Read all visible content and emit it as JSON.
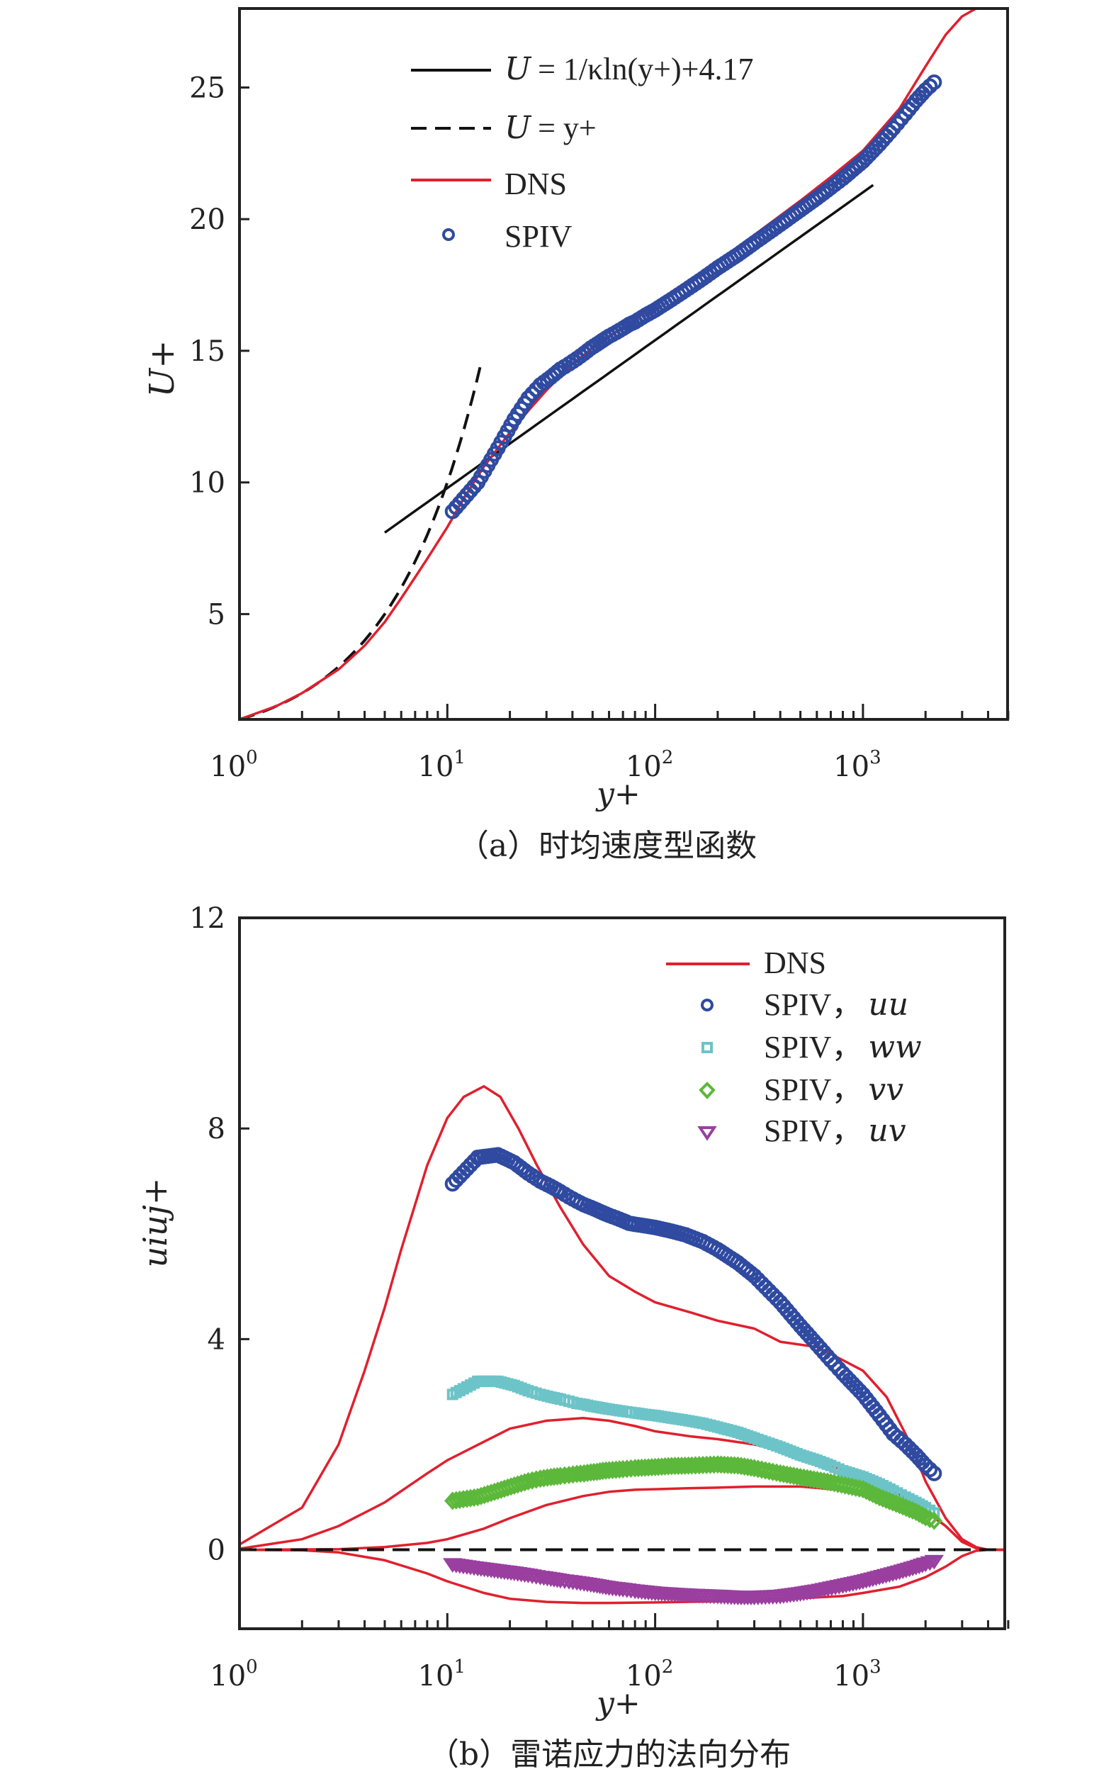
{
  "chart_data": [
    {
      "type": "line",
      "panel": "a",
      "caption": "（a）时均速度型函数",
      "xlabel": "y+",
      "ylabel": "U+",
      "xscale": "log",
      "xlim": [
        1,
        5000
      ],
      "ylim": [
        1,
        28
      ],
      "xticks": [
        {
          "v": 1,
          "base": "10",
          "exp": "0"
        },
        {
          "v": 10,
          "base": "10",
          "exp": "1"
        },
        {
          "v": 100,
          "base": "10",
          "exp": "2"
        },
        {
          "v": 1000,
          "base": "10",
          "exp": "3"
        }
      ],
      "yticks": [
        5,
        10,
        15,
        20,
        25
      ],
      "legend_position": "top-left",
      "legend": [
        {
          "key": "log",
          "label": "= 1/κln(y+)+4.17",
          "lhs": "U",
          "style": "solid-black"
        },
        {
          "key": "lin",
          "label": "= y+",
          "lhs": "U",
          "style": "dashed-black"
        },
        {
          "key": "dns",
          "label": "DNS",
          "style": "solid-red"
        },
        {
          "key": "spiv",
          "label": "SPIV",
          "style": "circle-blue"
        }
      ],
      "series": [
        {
          "name": "U+ = 1/κln(y+)+4.17",
          "key": "log",
          "kappa": 0.41,
          "B": 4.17,
          "x_range": [
            5,
            1250
          ]
        },
        {
          "name": "U+ = y+",
          "key": "lin",
          "x_range": [
            1,
            15
          ]
        },
        {
          "name": "DNS",
          "key": "dns",
          "x": [
            1,
            1.5,
            2,
            3,
            4,
            5,
            6,
            7,
            8,
            10,
            12,
            15,
            20,
            25,
            30,
            40,
            50,
            70,
            100,
            150,
            200,
            300,
            500,
            700,
            1000,
            1500,
            2000,
            2500,
            3000,
            3500,
            4000,
            5000
          ],
          "y": [
            1,
            1.5,
            2,
            2.9,
            3.8,
            4.7,
            5.6,
            6.4,
            7.1,
            8.3,
            9.4,
            10.6,
            11.9,
            12.8,
            13.5,
            14.5,
            15.1,
            15.9,
            16.7,
            17.7,
            18.4,
            19.4,
            20.7,
            21.6,
            22.6,
            24.2,
            25.8,
            27.0,
            27.7,
            28.0,
            28.0,
            28.0
          ]
        },
        {
          "name": "SPIV",
          "key": "spiv",
          "x": [
            10.6,
            14,
            17.5,
            21,
            24.5,
            28,
            31.5,
            35,
            38.5,
            42,
            45.5,
            49,
            52.5,
            56,
            60,
            65,
            70,
            75,
            80,
            90,
            100,
            120,
            140,
            170,
            200,
            250,
            300,
            400,
            500,
            600,
            700,
            800,
            1000,
            1200,
            1400,
            1600,
            1800,
            2000,
            2200
          ],
          "y": [
            8.9,
            10.0,
            11.3,
            12.4,
            13.2,
            13.7,
            14.0,
            14.3,
            14.5,
            14.7,
            14.9,
            15.1,
            15.25,
            15.4,
            15.55,
            15.7,
            15.85,
            16.0,
            16.1,
            16.35,
            16.55,
            16.95,
            17.3,
            17.75,
            18.15,
            18.65,
            19.1,
            19.8,
            20.35,
            20.8,
            21.2,
            21.55,
            22.2,
            22.85,
            23.45,
            24.0,
            24.5,
            24.9,
            25.2
          ]
        }
      ],
      "colors": {
        "dns": "#e0202e",
        "spiv": "#2f4aa0",
        "log": "#111111",
        "lin": "#111111"
      }
    },
    {
      "type": "line",
      "panel": "b",
      "caption": "（b）雷诺应力的法向分布",
      "xlabel": "y+",
      "ylabel": "uiuj+",
      "xscale": "log",
      "xlim": [
        1,
        5000
      ],
      "ylim": [
        -1.5,
        12
      ],
      "xticks": [
        {
          "v": 1,
          "base": "10",
          "exp": "0"
        },
        {
          "v": 10,
          "base": "10",
          "exp": "1"
        },
        {
          "v": 100,
          "base": "10",
          "exp": "2"
        },
        {
          "v": 1000,
          "base": "10",
          "exp": "3"
        }
      ],
      "yticks": [
        0,
        4,
        8,
        12
      ],
      "legend_position": "top-right",
      "legend": [
        {
          "key": "dns",
          "label": "DNS",
          "style": "solid-red"
        },
        {
          "key": "uu",
          "label": "SPIV，",
          "math": "uu",
          "style": "circle-blue"
        },
        {
          "key": "ww",
          "label": "SPIV，",
          "math": "ww",
          "style": "square-cyan"
        },
        {
          "key": "vv",
          "label": "SPIV，",
          "math": "vv",
          "style": "diamond-green"
        },
        {
          "key": "uv",
          "label": "SPIV，",
          "math": "uv",
          "style": "triangle-purple"
        }
      ],
      "series": [
        {
          "name": "DNS uu",
          "key": "dns",
          "x": [
            1,
            2,
            3,
            4,
            5,
            6,
            8,
            10,
            12,
            15,
            18,
            22,
            27,
            35,
            45,
            60,
            80,
            100,
            150,
            200,
            300,
            400,
            600,
            800,
            1000,
            1300,
            1700,
            2000,
            2500,
            3000,
            3500,
            4000,
            5000
          ],
          "y": [
            0.1,
            0.8,
            2.0,
            3.4,
            4.6,
            5.7,
            7.3,
            8.2,
            8.6,
            8.8,
            8.6,
            8.0,
            7.3,
            6.5,
            5.8,
            5.2,
            4.9,
            4.7,
            4.5,
            4.35,
            4.2,
            3.95,
            3.85,
            3.6,
            3.4,
            2.9,
            2.0,
            1.3,
            0.6,
            0.2,
            0.05,
            0,
            0
          ]
        },
        {
          "name": "DNS ww",
          "key": "dns",
          "x": [
            1,
            2,
            3,
            5,
            8,
            10,
            15,
            20,
            30,
            45,
            60,
            80,
            100,
            150,
            200,
            300,
            500,
            700,
            1000,
            1500,
            2000,
            2500,
            3000,
            3500,
            4000,
            5000
          ],
          "y": [
            0.02,
            0.2,
            0.45,
            0.9,
            1.45,
            1.7,
            2.05,
            2.3,
            2.45,
            2.5,
            2.45,
            2.35,
            2.25,
            2.15,
            2.1,
            2.0,
            1.8,
            1.6,
            1.35,
            1.05,
            0.75,
            0.45,
            0.15,
            0.03,
            0,
            0
          ]
        },
        {
          "name": "DNS vv",
          "key": "dns",
          "x": [
            1,
            3,
            5,
            8,
            10,
            15,
            20,
            30,
            45,
            60,
            80,
            100,
            150,
            200,
            300,
            500,
            700,
            1000,
            1500,
            2000,
            2500,
            3000,
            3500,
            4000,
            5000
          ],
          "y": [
            0,
            0.01,
            0.05,
            0.13,
            0.2,
            0.4,
            0.6,
            0.85,
            1.02,
            1.1,
            1.14,
            1.15,
            1.17,
            1.18,
            1.2,
            1.2,
            1.15,
            1.1,
            0.95,
            0.72,
            0.45,
            0.15,
            0.03,
            0,
            0
          ]
        },
        {
          "name": "DNS uv",
          "key": "dns",
          "x": [
            1,
            2,
            3,
            5,
            8,
            10,
            15,
            20,
            30,
            45,
            60,
            100,
            200,
            300,
            500,
            800,
            1000,
            1500,
            2000,
            2500,
            3000,
            3500,
            4000,
            5000
          ],
          "y": [
            0,
            -0.01,
            -0.05,
            -0.2,
            -0.45,
            -0.6,
            -0.82,
            -0.93,
            -0.99,
            -1.01,
            -1.01,
            -1.0,
            -0.98,
            -0.95,
            -0.92,
            -0.88,
            -0.82,
            -0.7,
            -0.52,
            -0.32,
            -0.12,
            -0.02,
            0,
            0
          ]
        },
        {
          "name": "SPIV uu",
          "key": "uu",
          "x": [
            10.6,
            14,
            17.5,
            21,
            24.5,
            28,
            31.5,
            35,
            38.5,
            42,
            45.5,
            49,
            52.5,
            56,
            60,
            65,
            70,
            75,
            80,
            90,
            100,
            120,
            140,
            170,
            200,
            250,
            300,
            400,
            500,
            600,
            700,
            800,
            1000,
            1200,
            1400,
            1600,
            1800,
            2000,
            2200
          ],
          "y": [
            6.95,
            7.45,
            7.5,
            7.35,
            7.15,
            7.0,
            6.9,
            6.8,
            6.7,
            6.62,
            6.55,
            6.5,
            6.45,
            6.4,
            6.35,
            6.3,
            6.25,
            6.2,
            6.18,
            6.15,
            6.12,
            6.05,
            5.98,
            5.85,
            5.7,
            5.45,
            5.2,
            4.7,
            4.25,
            3.9,
            3.6,
            3.35,
            2.95,
            2.55,
            2.2,
            2.0,
            1.8,
            1.6,
            1.45
          ]
        },
        {
          "name": "SPIV ww",
          "key": "ww",
          "x": [
            10.6,
            14,
            17.5,
            21,
            24.5,
            28,
            31.5,
            35,
            38.5,
            42,
            45.5,
            49,
            52.5,
            56,
            60,
            65,
            70,
            80,
            90,
            100,
            120,
            140,
            170,
            200,
            250,
            300,
            400,
            500,
            600,
            700,
            800,
            1000,
            1200,
            1400,
            1600,
            1800,
            2000,
            2200
          ],
          "y": [
            2.95,
            3.2,
            3.2,
            3.12,
            3.02,
            2.95,
            2.9,
            2.86,
            2.82,
            2.78,
            2.76,
            2.73,
            2.71,
            2.69,
            2.67,
            2.65,
            2.63,
            2.6,
            2.57,
            2.55,
            2.5,
            2.46,
            2.4,
            2.33,
            2.23,
            2.12,
            1.95,
            1.8,
            1.7,
            1.6,
            1.5,
            1.38,
            1.25,
            1.12,
            1.0,
            0.9,
            0.8,
            0.7
          ]
        },
        {
          "name": "SPIV vv",
          "key": "vv",
          "x": [
            10.6,
            14,
            17.5,
            21,
            24.5,
            28,
            31.5,
            35,
            38.5,
            42,
            45.5,
            49,
            52.5,
            56,
            60,
            70,
            80,
            100,
            120,
            150,
            200,
            250,
            300,
            400,
            500,
            700,
            1000,
            1200,
            1500,
            1800,
            2000,
            2200
          ],
          "y": [
            0.93,
            1.0,
            1.12,
            1.22,
            1.3,
            1.35,
            1.38,
            1.4,
            1.42,
            1.44,
            1.45,
            1.47,
            1.48,
            1.5,
            1.51,
            1.53,
            1.55,
            1.57,
            1.59,
            1.6,
            1.62,
            1.6,
            1.55,
            1.45,
            1.38,
            1.28,
            1.15,
            1.0,
            0.85,
            0.72,
            0.62,
            0.55
          ]
        },
        {
          "name": "SPIV uv",
          "key": "uv",
          "x": [
            10.6,
            14,
            17.5,
            21,
            24.5,
            28,
            31.5,
            35,
            38.5,
            42,
            45.5,
            49,
            52.5,
            56,
            60,
            70,
            80,
            100,
            120,
            150,
            200,
            250,
            300,
            400,
            500,
            600,
            800,
            1000,
            1200,
            1500,
            1800,
            2000,
            2200
          ],
          "y": [
            -0.28,
            -0.35,
            -0.4,
            -0.44,
            -0.48,
            -0.52,
            -0.55,
            -0.58,
            -0.6,
            -0.62,
            -0.64,
            -0.66,
            -0.68,
            -0.7,
            -0.72,
            -0.75,
            -0.78,
            -0.82,
            -0.84,
            -0.86,
            -0.88,
            -0.9,
            -0.9,
            -0.88,
            -0.83,
            -0.78,
            -0.68,
            -0.6,
            -0.52,
            -0.42,
            -0.33,
            -0.27,
            -0.22
          ]
        },
        {
          "name": "zero line",
          "key": "zero",
          "y_value": 0
        }
      ],
      "colors": {
        "dns": "#e0202e",
        "uu": "#2f4aa0",
        "ww": "#6cc4c8",
        "vv": "#5cb83a",
        "uv": "#9a3fa0",
        "zero": "#111111"
      }
    }
  ]
}
